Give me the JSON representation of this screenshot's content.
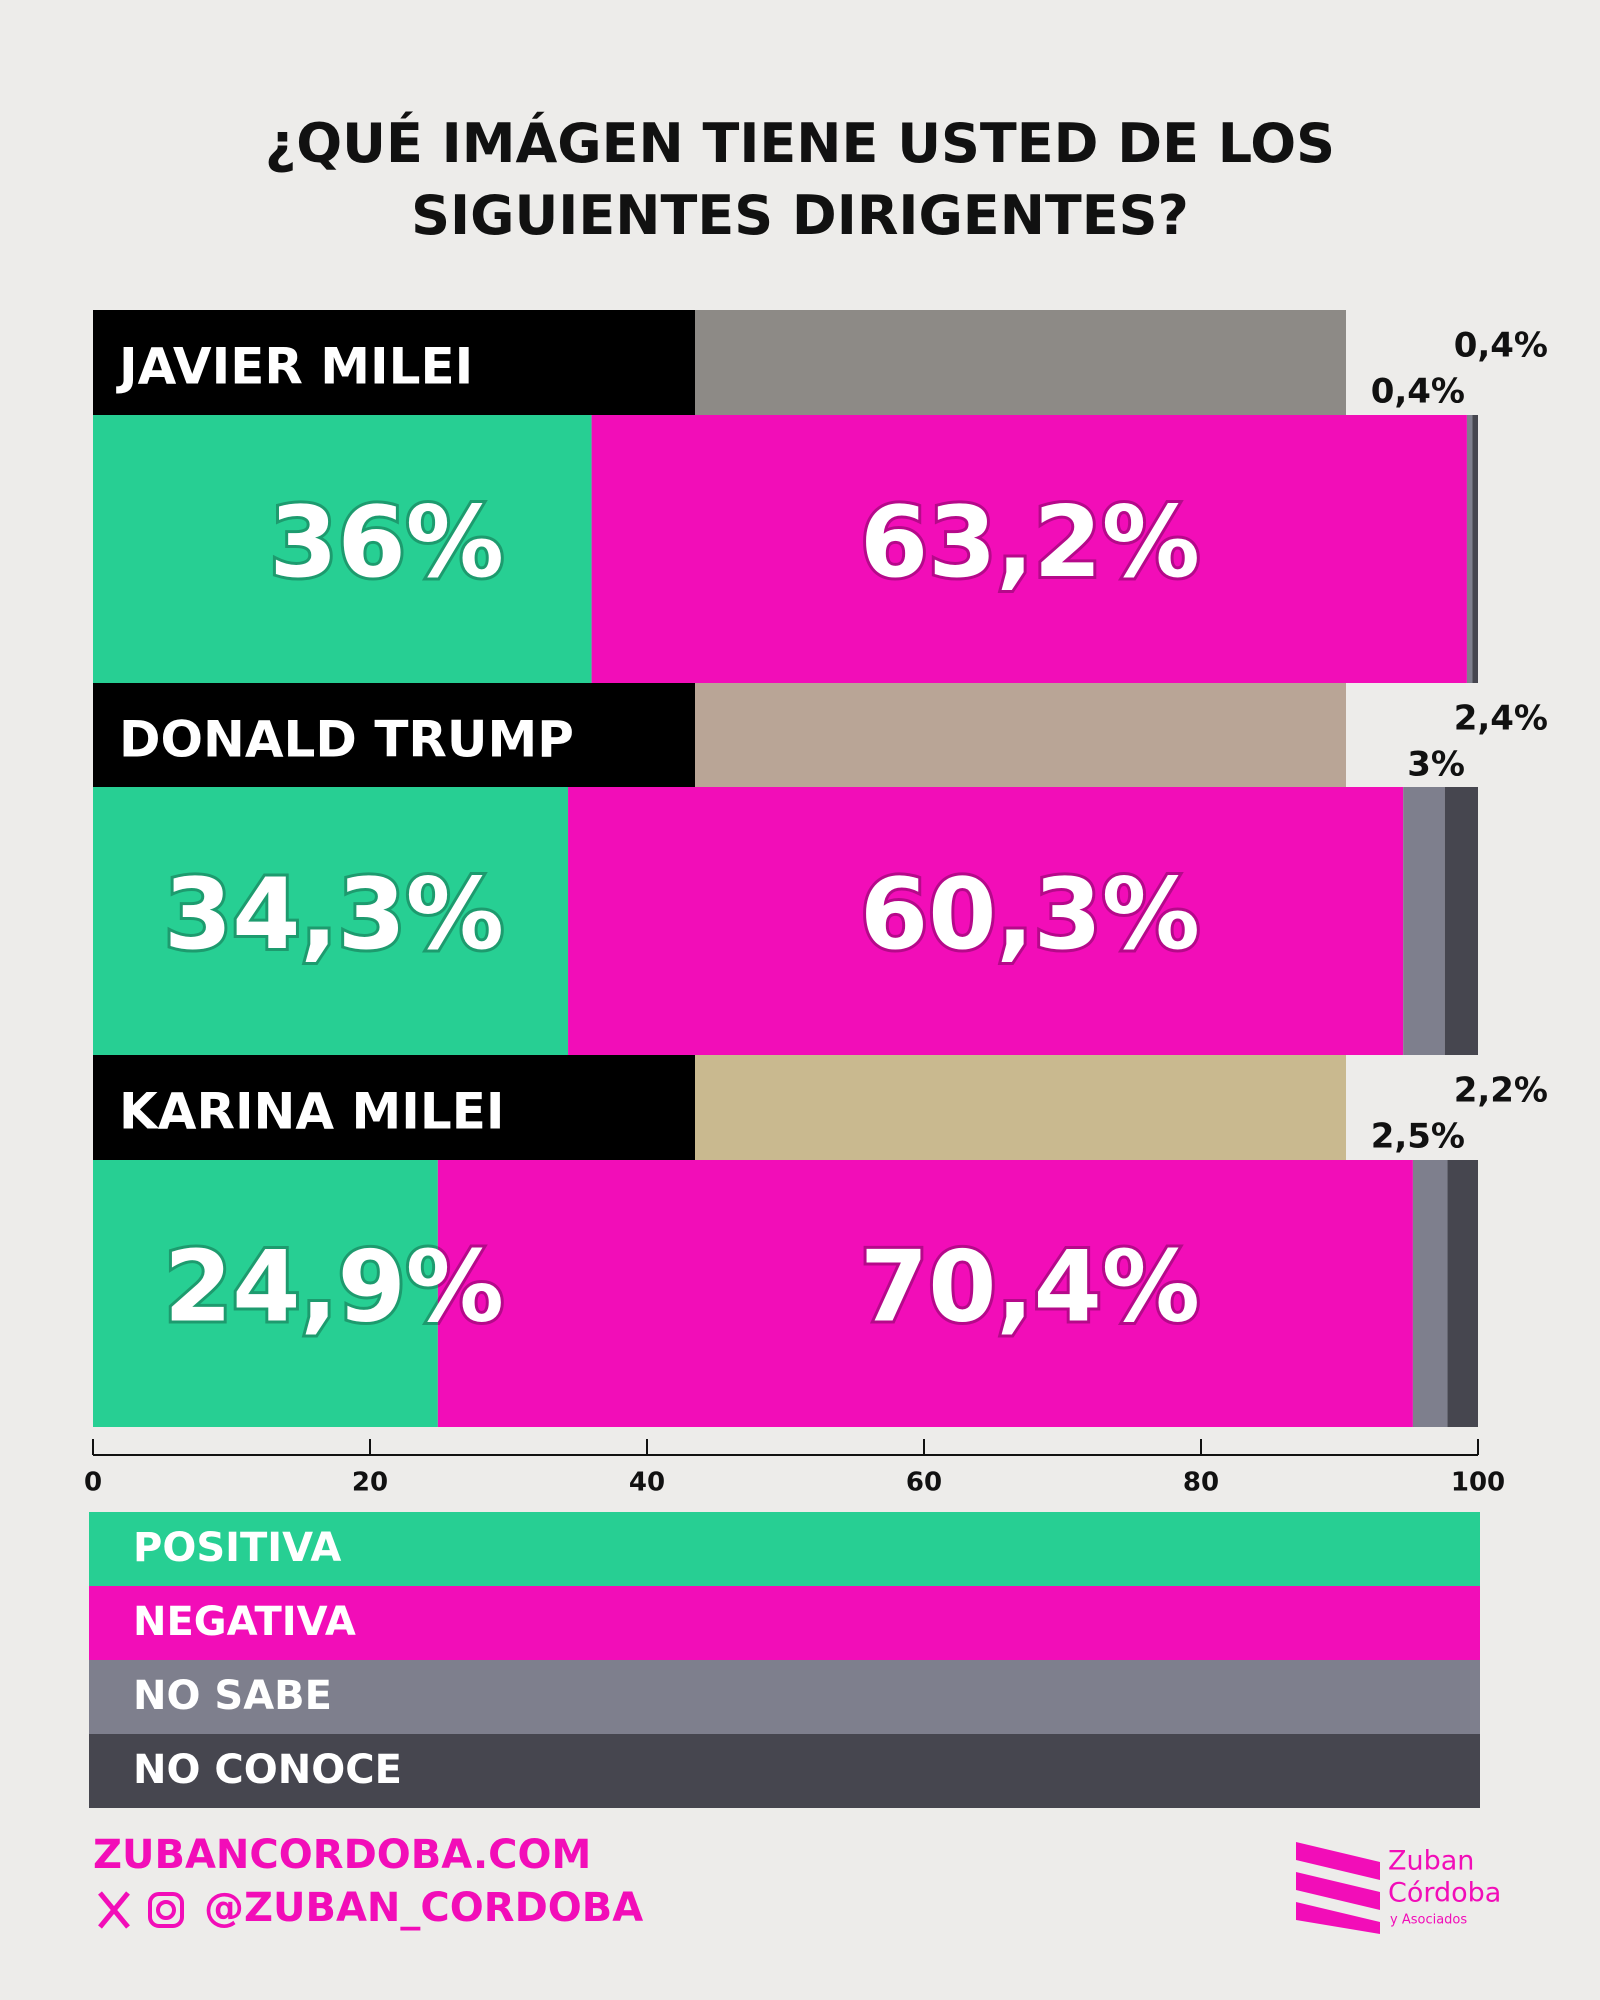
{
  "chart_data": {
    "type": "bar",
    "stacked": true,
    "orientation": "horizontal",
    "title": "¿QUÉ IMÁGEN TIENE USTED DE LOS SIGUIENTES DIRIGENTES?",
    "categories": [
      "JAVIER MILEI",
      "DONALD TRUMP",
      "KARINA MILEI"
    ],
    "series": [
      {
        "name": "POSITIVA",
        "color": "#27cf93",
        "values": [
          36,
          34.3,
          24.9
        ],
        "value_labels": [
          "36%",
          "34,3%",
          "24,9%"
        ]
      },
      {
        "name": "NEGATIVA",
        "color": "#f20db8",
        "values": [
          63.2,
          60.3,
          70.4
        ],
        "value_labels": [
          "63,2%",
          "60,3%",
          "70,4%"
        ]
      },
      {
        "name": "NO SABE",
        "color": "#7e7f8d",
        "values": [
          0.4,
          3,
          2.5
        ],
        "value_labels": [
          "0,4%",
          "3%",
          "2,5%"
        ]
      },
      {
        "name": "NO CONOCE",
        "color": "#46464f",
        "values": [
          0.4,
          2.4,
          2.2
        ],
        "value_labels": [
          "0,4%",
          "2,4%",
          "2,2%"
        ]
      }
    ],
    "xlim": [
      0,
      100
    ],
    "xticks": [
      0,
      20,
      40,
      60,
      80,
      100
    ],
    "legend": "bottom"
  },
  "footer": {
    "website": "ZUBANCORDOBA.COM",
    "handle": "@ZUBAN_CORDOBA",
    "logo": [
      "Zuban",
      "Córdoba",
      "y Asociados"
    ]
  }
}
